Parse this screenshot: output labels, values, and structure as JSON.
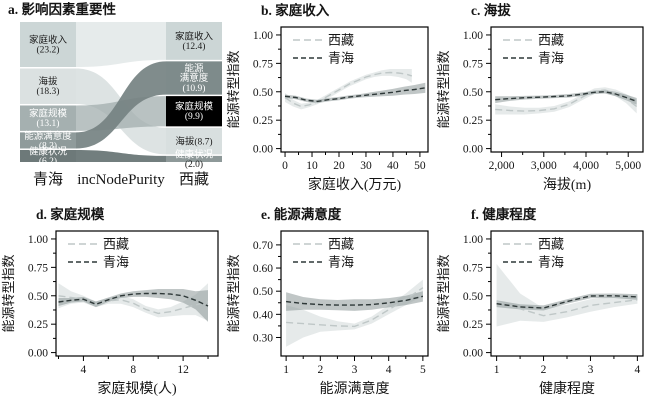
{
  "figure": {
    "y_axis_label": "能源转型指数",
    "legend_items": [
      "西藏",
      "青海"
    ],
    "colors": {
      "background": "#ffffff",
      "axis": "#000000",
      "text": "#141414",
      "tibet_line": "#bfc7c7",
      "tibet_band": "rgba(206,214,214,0.5)",
      "qinghai_line": "#2e3838",
      "qinghai_band": "rgba(141,152,152,0.55)"
    },
    "series_styles": {
      "西藏": {
        "line": "#bfc7c7",
        "band": "rgba(206,214,214,0.5)",
        "dash": "7,4"
      },
      "青海": {
        "line": "#2e3838",
        "band": "rgba(141,152,152,0.55)",
        "dash": "5,3"
      }
    }
  },
  "chart_data": [
    {
      "type": "alluvial",
      "panel": "a",
      "title": "a. 影响因素重要性",
      "axis_labels": [
        "青海",
        "incNodePurity",
        "西藏"
      ],
      "left_nodes": [
        {
          "label": "家庭收入",
          "value": 23.2,
          "lines": [
            "家庭收入",
            "(23.2)"
          ],
          "fill": "#ccd6d6",
          "text": "#1c1c1c"
        },
        {
          "label": "海拔",
          "value": 18.3,
          "lines": [
            "海拔",
            "(18.3)"
          ],
          "fill": "#dbe1e1",
          "text": "#1c1c1c"
        },
        {
          "label": "家庭规模",
          "value": 13.1,
          "lines": [
            "家庭规模",
            "(13.1)"
          ],
          "fill": "#a5b0b0",
          "text": "#ffffff"
        },
        {
          "label": "能源满意度",
          "value": 8.3,
          "lines": [
            "能源满意度",
            "(8.3)"
          ],
          "fill": "#8f9b9b",
          "text": "#ffffff"
        },
        {
          "label": "健康状况",
          "value": 6.2,
          "lines": [
            "健康状况",
            "(6.2)"
          ],
          "fill": "#6d7979",
          "text": "#ffffff"
        }
      ],
      "right_nodes": [
        {
          "label": "家庭收入",
          "value": 12.4,
          "lines": [
            "家庭收入",
            "(12.4)"
          ],
          "fill": "#ccd6d6",
          "text": "#1c1c1c"
        },
        {
          "label": "能源满意度",
          "value": 10.9,
          "lines": [
            "能源",
            "满意度",
            "(10.9)"
          ],
          "fill": "#7e8b8b",
          "text": "#ffffff"
        },
        {
          "label": "家庭规模",
          "value": 9.9,
          "lines": [
            "家庭规模",
            "(9.9)"
          ],
          "fill": "#9dа9a9",
          "text": "#ffffff"
        },
        {
          "label": "海拔",
          "value": 8.7,
          "lines": [
            "海拔(8.7)"
          ],
          "fill": "#d8dfdf",
          "text": "#1c1c1c"
        },
        {
          "label": "健康状况",
          "value": 2.0,
          "lines": [
            "健康状况",
            "(2.0)"
          ],
          "fill": "#8e9999",
          "text": "#ffffff"
        }
      ],
      "flow_draw_order": [
        "家庭收入",
        "海拔",
        "家庭规模",
        "健康状况",
        "能源满意度"
      ],
      "flow_fills": {
        "家庭收入": "rgba(226,232,232,0.85)",
        "海拔": "rgba(212,220,220,0.8)",
        "家庭规模": "rgba(162,173,173,0.75)",
        "健康状况": "rgba(99,112,112,0.9)",
        "能源满意度": "rgba(117,130,130,0.92)"
      }
    },
    {
      "type": "line",
      "panel": "b",
      "title": "b. 家庭收入",
      "xlabel": "家庭收入(万元)",
      "ylabel": "能源转型指数",
      "xlim": [
        -1.5,
        53
      ],
      "ylim": [
        -0.03,
        1.07
      ],
      "xticks": [
        0,
        10,
        20,
        30,
        40,
        50
      ],
      "xtick_labels": [
        "0",
        "10",
        "20",
        "30",
        "40",
        "50"
      ],
      "xminor": [
        5,
        15,
        25,
        35,
        45
      ],
      "yticks": [
        0.0,
        0.25,
        0.5,
        0.75,
        1.0
      ],
      "ytick_labels": [
        "0.00",
        "0.25",
        "0.50",
        "0.75",
        "1.00"
      ],
      "yminor": [
        0.125,
        0.375,
        0.625,
        0.875
      ],
      "series": [
        {
          "name": "西藏",
          "x": [
            0,
            3,
            6,
            9,
            12,
            15,
            18,
            21,
            24,
            27,
            30,
            33,
            36,
            39,
            42,
            45,
            47
          ],
          "y": [
            0.45,
            0.4,
            0.37,
            0.385,
            0.41,
            0.45,
            0.49,
            0.53,
            0.57,
            0.6,
            0.63,
            0.65,
            0.665,
            0.67,
            0.665,
            0.655,
            0.64
          ],
          "lo": [
            0.41,
            0.37,
            0.345,
            0.365,
            0.39,
            0.43,
            0.47,
            0.51,
            0.55,
            0.58,
            0.61,
            0.63,
            0.64,
            0.64,
            0.63,
            0.61,
            0.58
          ],
          "hi": [
            0.49,
            0.43,
            0.395,
            0.405,
            0.43,
            0.47,
            0.51,
            0.55,
            0.59,
            0.62,
            0.65,
            0.67,
            0.69,
            0.7,
            0.7,
            0.7,
            0.7
          ]
        },
        {
          "name": "青海",
          "x": [
            0,
            4,
            8,
            12,
            16,
            20,
            24,
            28,
            32,
            36,
            40,
            44,
            48,
            52
          ],
          "y": [
            0.46,
            0.45,
            0.425,
            0.415,
            0.43,
            0.44,
            0.455,
            0.465,
            0.475,
            0.485,
            0.495,
            0.51,
            0.52,
            0.535
          ],
          "lo": [
            0.445,
            0.435,
            0.41,
            0.4,
            0.415,
            0.425,
            0.44,
            0.45,
            0.455,
            0.46,
            0.465,
            0.475,
            0.48,
            0.49
          ],
          "hi": [
            0.475,
            0.465,
            0.44,
            0.43,
            0.445,
            0.455,
            0.47,
            0.48,
            0.495,
            0.51,
            0.525,
            0.545,
            0.56,
            0.58
          ]
        }
      ]
    },
    {
      "type": "line",
      "panel": "c",
      "title": "c. 海拔",
      "xlabel": "海拔(m)",
      "ylabel": "能源转型指数",
      "xlim": [
        1750,
        5350
      ],
      "ylim": [
        -0.03,
        1.07
      ],
      "xticks": [
        2000,
        3000,
        4000,
        5000
      ],
      "xtick_labels": [
        "2,000",
        "3,000",
        "4,000",
        "5,000"
      ],
      "xminor": [
        2500,
        3500,
        4500
      ],
      "yticks": [
        0.0,
        0.25,
        0.5,
        0.75,
        1.0
      ],
      "ytick_labels": [
        "0.00",
        "0.25",
        "0.50",
        "0.75",
        "1.00"
      ],
      "yminor": [
        0.125,
        0.375,
        0.625,
        0.875
      ],
      "series": [
        {
          "name": "西藏",
          "x": [
            1850,
            2200,
            2550,
            2900,
            3250,
            3600,
            3950,
            4200,
            4450,
            4700,
            4950,
            5200
          ],
          "y": [
            0.345,
            0.335,
            0.33,
            0.335,
            0.35,
            0.39,
            0.46,
            0.505,
            0.515,
            0.49,
            0.44,
            0.37
          ],
          "lo": [
            0.3,
            0.3,
            0.3,
            0.31,
            0.325,
            0.365,
            0.435,
            0.48,
            0.49,
            0.46,
            0.4,
            0.31
          ],
          "hi": [
            0.39,
            0.37,
            0.36,
            0.36,
            0.375,
            0.415,
            0.485,
            0.53,
            0.54,
            0.52,
            0.48,
            0.43
          ]
        },
        {
          "name": "青海",
          "x": [
            1850,
            2200,
            2550,
            2900,
            3250,
            3600,
            3950,
            4200,
            4450,
            4700,
            4950,
            5200
          ],
          "y": [
            0.43,
            0.44,
            0.448,
            0.452,
            0.458,
            0.465,
            0.48,
            0.495,
            0.5,
            0.48,
            0.45,
            0.415
          ],
          "lo": [
            0.4,
            0.42,
            0.432,
            0.438,
            0.444,
            0.45,
            0.465,
            0.48,
            0.485,
            0.46,
            0.425,
            0.385
          ],
          "hi": [
            0.46,
            0.46,
            0.464,
            0.466,
            0.472,
            0.48,
            0.495,
            0.51,
            0.515,
            0.5,
            0.475,
            0.445
          ]
        }
      ]
    },
    {
      "type": "line",
      "panel": "d",
      "title": "d. 家庭规模",
      "xlabel": "家庭规模(人)",
      "ylabel": "能源转型指数",
      "xlim": [
        1.8,
        14.8
      ],
      "ylim": [
        -0.03,
        1.07
      ],
      "xticks": [
        4,
        8,
        12
      ],
      "xtick_labels": [
        "4",
        "8",
        "12"
      ],
      "xminor": [
        2,
        6,
        10,
        14
      ],
      "yticks": [
        0.0,
        0.25,
        0.5,
        0.75,
        1.0
      ],
      "ytick_labels": [
        "0.00",
        "0.25",
        "0.50",
        "0.75",
        "1.00"
      ],
      "yminor": [
        0.125,
        0.375,
        0.625,
        0.875
      ],
      "series": [
        {
          "name": "西藏",
          "x": [
            2,
            3,
            4,
            5,
            6,
            7,
            8,
            9,
            10,
            11,
            12,
            13,
            14
          ],
          "y": [
            0.5,
            0.485,
            0.47,
            0.425,
            0.455,
            0.465,
            0.435,
            0.38,
            0.345,
            0.36,
            0.39,
            0.42,
            0.445
          ],
          "lo": [
            0.39,
            0.43,
            0.44,
            0.4,
            0.43,
            0.43,
            0.4,
            0.35,
            0.31,
            0.32,
            0.33,
            0.33,
            0.28
          ],
          "hi": [
            0.61,
            0.54,
            0.5,
            0.45,
            0.48,
            0.5,
            0.47,
            0.41,
            0.38,
            0.4,
            0.45,
            0.51,
            0.61
          ]
        },
        {
          "name": "青海",
          "x": [
            2,
            3,
            4,
            5,
            6,
            7,
            8,
            9,
            10,
            11,
            12,
            13,
            14
          ],
          "y": [
            0.445,
            0.46,
            0.47,
            0.425,
            0.465,
            0.5,
            0.515,
            0.52,
            0.52,
            0.515,
            0.5,
            0.46,
            0.41
          ],
          "lo": [
            0.41,
            0.44,
            0.45,
            0.4,
            0.445,
            0.48,
            0.49,
            0.49,
            0.48,
            0.47,
            0.44,
            0.38,
            0.27
          ],
          "hi": [
            0.48,
            0.48,
            0.49,
            0.45,
            0.485,
            0.52,
            0.54,
            0.55,
            0.56,
            0.56,
            0.56,
            0.54,
            0.55
          ]
        }
      ]
    },
    {
      "type": "line",
      "panel": "e",
      "title": "e. 能源满意度",
      "xlabel": "能源满意度",
      "ylabel": "能源转型指数",
      "xlim": [
        0.85,
        5.15
      ],
      "ylim": [
        0.22,
        0.76
      ],
      "xticks": [
        1,
        2,
        3,
        4,
        5
      ],
      "xtick_labels": [
        "1",
        "2",
        "3",
        "4",
        "5"
      ],
      "xminor": [
        1.5,
        2.5,
        3.5,
        4.5
      ],
      "yticks": [
        0.3,
        0.4,
        0.5,
        0.6,
        0.7
      ],
      "ytick_labels": [
        "0.30",
        "0.40",
        "0.50",
        "0.60",
        "0.70"
      ],
      "yminor": [
        0.35,
        0.45,
        0.55,
        0.65
      ],
      "series": [
        {
          "name": "西藏",
          "x": [
            1,
            1.5,
            2,
            2.5,
            3,
            3.5,
            4,
            4.5,
            5
          ],
          "y": [
            0.365,
            0.36,
            0.355,
            0.35,
            0.348,
            0.375,
            0.42,
            0.465,
            0.515
          ],
          "lo": [
            0.26,
            0.3,
            0.325,
            0.33,
            0.335,
            0.36,
            0.4,
            0.44,
            0.48
          ],
          "hi": [
            0.44,
            0.42,
            0.39,
            0.37,
            0.36,
            0.39,
            0.44,
            0.49,
            0.55
          ]
        },
        {
          "name": "青海",
          "x": [
            1,
            1.5,
            2,
            2.5,
            3,
            3.5,
            4,
            4.5,
            5
          ],
          "y": [
            0.455,
            0.447,
            0.442,
            0.44,
            0.44,
            0.442,
            0.45,
            0.46,
            0.478
          ],
          "lo": [
            0.415,
            0.42,
            0.42,
            0.418,
            0.415,
            0.42,
            0.43,
            0.44,
            0.455
          ],
          "hi": [
            0.495,
            0.475,
            0.465,
            0.462,
            0.465,
            0.465,
            0.47,
            0.48,
            0.5
          ]
        }
      ]
    },
    {
      "type": "line",
      "panel": "f",
      "title": "f. 健康程度",
      "xlabel": "健康程度",
      "ylabel": "能源转型指数",
      "xlim": [
        0.88,
        4.12
      ],
      "ylim": [
        -0.03,
        1.07
      ],
      "xticks": [
        1,
        2,
        3,
        4
      ],
      "xtick_labels": [
        "1",
        "2",
        "3",
        "4"
      ],
      "xminor": [
        1.5,
        2.5,
        3.5
      ],
      "yticks": [
        0.0,
        0.25,
        0.5,
        0.75,
        1.0
      ],
      "ytick_labels": [
        "0.00",
        "0.25",
        "0.50",
        "0.75",
        "1.00"
      ],
      "yminor": [
        0.125,
        0.375,
        0.625,
        0.875
      ],
      "series": [
        {
          "name": "西藏",
          "x": [
            1,
            1.5,
            2,
            2.5,
            3,
            3.5,
            4
          ],
          "y": [
            0.45,
            0.385,
            0.325,
            0.36,
            0.415,
            0.44,
            0.465
          ],
          "lo": [
            0.23,
            0.28,
            0.27,
            0.31,
            0.36,
            0.4,
            0.43
          ],
          "hi": [
            0.78,
            0.52,
            0.39,
            0.42,
            0.47,
            0.49,
            0.5
          ]
        },
        {
          "name": "青海",
          "x": [
            1,
            1.5,
            2,
            2.5,
            3,
            3.5,
            4
          ],
          "y": [
            0.43,
            0.402,
            0.392,
            0.45,
            0.498,
            0.5,
            0.49
          ],
          "lo": [
            0.4,
            0.38,
            0.37,
            0.43,
            0.478,
            0.48,
            0.465
          ],
          "hi": [
            0.46,
            0.425,
            0.415,
            0.47,
            0.518,
            0.52,
            0.515
          ]
        }
      ]
    }
  ]
}
